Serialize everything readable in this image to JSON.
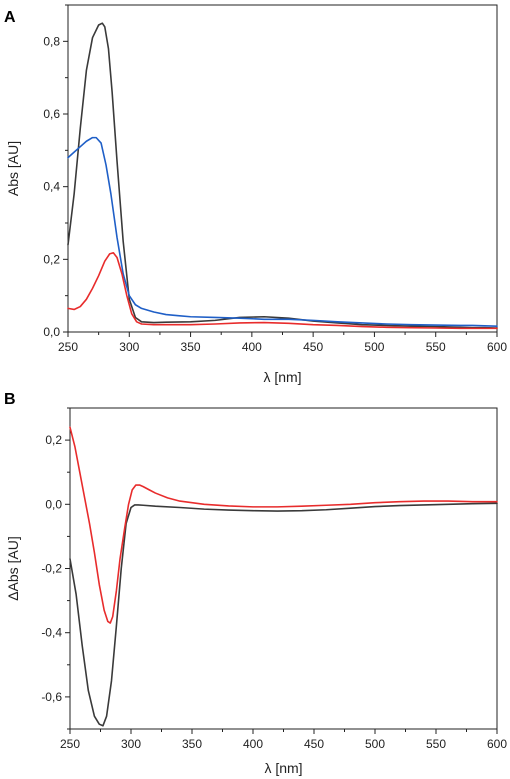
{
  "chart_data": [
    {
      "panel_label": "A",
      "type": "line",
      "xlabel": "λ [nm]",
      "ylabel": "Abs [AU]",
      "xlim": [
        250,
        600
      ],
      "ylim": [
        0,
        0.9
      ],
      "xticks": [
        "250",
        "300",
        "350",
        "400",
        "450",
        "500",
        "550",
        "600"
      ],
      "yticks": [
        "0,0",
        "0,2",
        "0,4",
        "0,6",
        "0,8"
      ],
      "grid": false,
      "series": [
        {
          "color": "#3a3a3a",
          "x": [
            250,
            255,
            260,
            265,
            270,
            275,
            278,
            280,
            283,
            286,
            290,
            295,
            300,
            305,
            310,
            320,
            330,
            350,
            370,
            390,
            410,
            430,
            450,
            470,
            490,
            510,
            530,
            550,
            570,
            580,
            590,
            600
          ],
          "y": [
            0.24,
            0.38,
            0.56,
            0.72,
            0.81,
            0.845,
            0.85,
            0.84,
            0.78,
            0.66,
            0.47,
            0.25,
            0.09,
            0.04,
            0.028,
            0.026,
            0.027,
            0.028,
            0.032,
            0.04,
            0.042,
            0.038,
            0.03,
            0.025,
            0.02,
            0.018,
            0.016,
            0.015,
            0.013,
            0.012,
            0.012,
            0.011
          ]
        },
        {
          "color": "#1f5fc7",
          "x": [
            250,
            255,
            260,
            265,
            270,
            273,
            277,
            281,
            285,
            290,
            295,
            300,
            305,
            310,
            320,
            330,
            340,
            350,
            370,
            390,
            410,
            430,
            450,
            470,
            490,
            510,
            530,
            550,
            570,
            580,
            590,
            600
          ],
          "y": [
            0.48,
            0.495,
            0.51,
            0.525,
            0.535,
            0.535,
            0.52,
            0.46,
            0.38,
            0.26,
            0.16,
            0.1,
            0.075,
            0.065,
            0.055,
            0.048,
            0.045,
            0.042,
            0.04,
            0.038,
            0.035,
            0.035,
            0.032,
            0.028,
            0.025,
            0.022,
            0.02,
            0.019,
            0.018,
            0.018,
            0.017,
            0.016
          ]
        },
        {
          "color": "#e82c2c",
          "x": [
            250,
            255,
            260,
            265,
            270,
            275,
            280,
            284,
            287,
            290,
            294,
            298,
            302,
            306,
            310,
            320,
            330,
            350,
            370,
            390,
            410,
            430,
            450,
            470,
            490,
            510,
            530,
            550,
            570,
            580,
            590,
            600
          ],
          "y": [
            0.065,
            0.062,
            0.07,
            0.09,
            0.12,
            0.155,
            0.195,
            0.215,
            0.218,
            0.205,
            0.16,
            0.1,
            0.05,
            0.028,
            0.022,
            0.02,
            0.02,
            0.02,
            0.022,
            0.025,
            0.026,
            0.024,
            0.02,
            0.018,
            0.015,
            0.013,
            0.012,
            0.011,
            0.01,
            0.01,
            0.01,
            0.01
          ]
        }
      ]
    },
    {
      "panel_label": "B",
      "type": "line",
      "xlabel": "λ [nm]",
      "ylabel": "ΔAbs [AU]",
      "xlim": [
        250,
        600
      ],
      "ylim": [
        -0.7,
        0.3
      ],
      "xticks": [
        "250",
        "300",
        "350",
        "400",
        "450",
        "500",
        "550",
        "600"
      ],
      "yticks": [
        "-0,6",
        "-0,4",
        "-0,2",
        "0,0",
        "0,2"
      ],
      "grid": false,
      "series": [
        {
          "color": "#3a3a3a",
          "x": [
            250,
            255,
            260,
            265,
            270,
            274,
            277,
            280,
            284,
            288,
            292,
            296,
            300,
            303,
            306,
            310,
            320,
            340,
            360,
            380,
            400,
            420,
            440,
            460,
            480,
            500,
            520,
            540,
            560,
            580,
            600
          ],
          "y": [
            -0.17,
            -0.28,
            -0.44,
            -0.58,
            -0.66,
            -0.685,
            -0.69,
            -0.66,
            -0.55,
            -0.38,
            -0.2,
            -0.06,
            -0.01,
            -0.002,
            -0.002,
            -0.003,
            -0.006,
            -0.01,
            -0.015,
            -0.018,
            -0.02,
            -0.021,
            -0.02,
            -0.017,
            -0.012,
            -0.007,
            -0.004,
            -0.002,
            0.0,
            0.002,
            0.003
          ]
        },
        {
          "color": "#e82c2c",
          "x": [
            250,
            254,
            258,
            262,
            266,
            270,
            274,
            278,
            281,
            283,
            285,
            288,
            291,
            295,
            298,
            301,
            304,
            307,
            310,
            315,
            320,
            330,
            340,
            360,
            380,
            400,
            420,
            440,
            460,
            480,
            500,
            520,
            540,
            560,
            580,
            600
          ],
          "y": [
            0.24,
            0.18,
            0.1,
            0.02,
            -0.06,
            -0.15,
            -0.25,
            -0.33,
            -0.365,
            -0.37,
            -0.35,
            -0.27,
            -0.17,
            -0.07,
            0.0,
            0.045,
            0.06,
            0.06,
            0.055,
            0.045,
            0.035,
            0.02,
            0.01,
            0.0,
            -0.005,
            -0.008,
            -0.008,
            -0.006,
            -0.003,
            0.0,
            0.005,
            0.008,
            0.01,
            0.01,
            0.008,
            0.008
          ]
        }
      ]
    }
  ]
}
